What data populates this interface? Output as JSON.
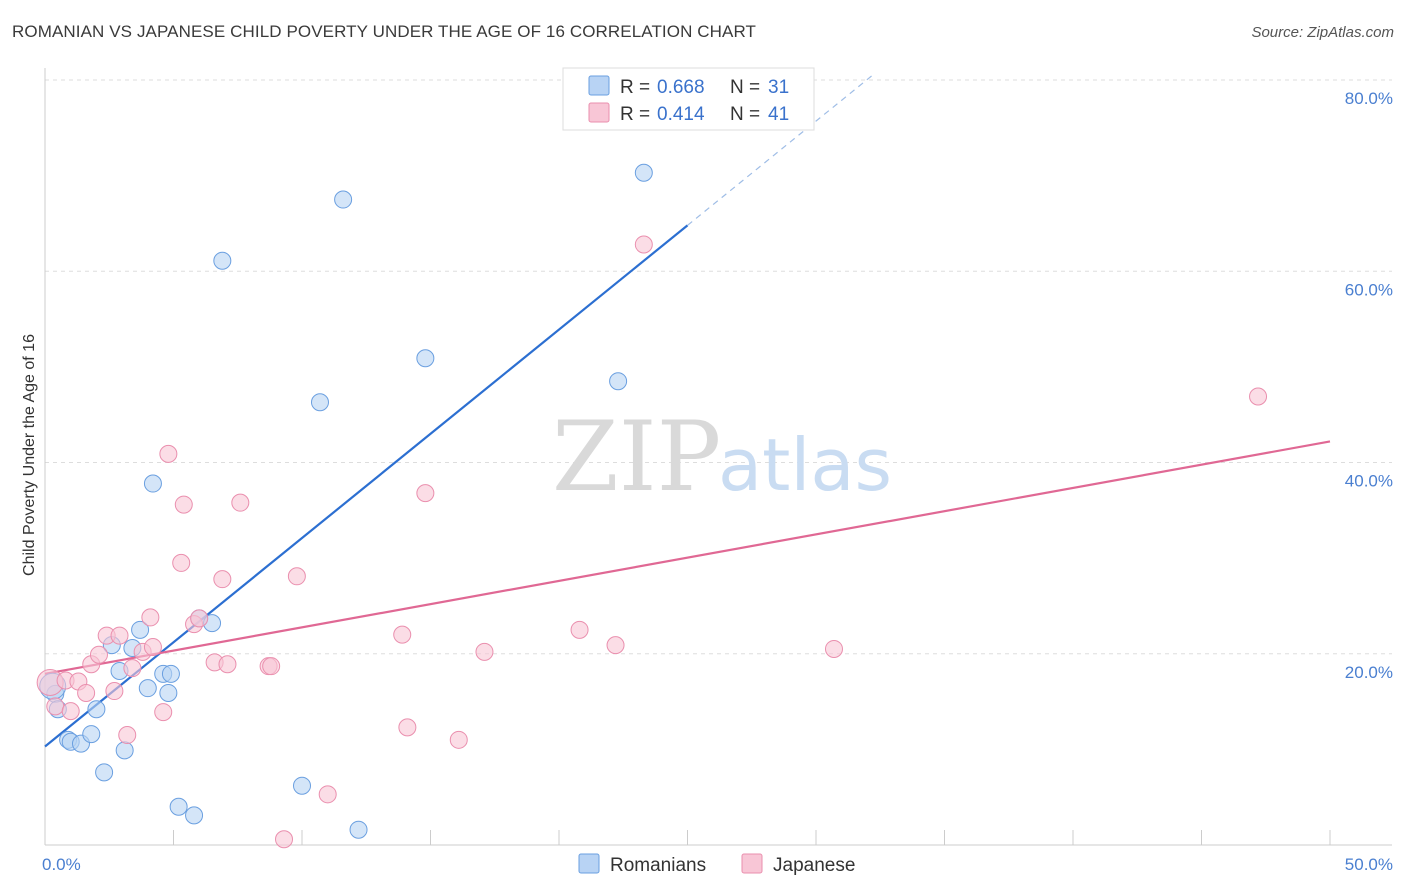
{
  "title": "ROMANIAN VS JAPANESE CHILD POVERTY UNDER THE AGE OF 16 CORRELATION CHART",
  "source": "Source: ZipAtlas.com",
  "watermark": {
    "zip": "ZIP",
    "atlas": "atlas"
  },
  "legend": {
    "romanians": {
      "r_label": "R =",
      "r_value": "0.668",
      "n_label": "N =",
      "n_value": "31"
    },
    "japanese": {
      "r_label": "R =",
      "r_value": "0.414",
      "n_label": "N =",
      "n_value": "41"
    }
  },
  "colors": {
    "romanians_fill": "#b8d3f4",
    "romanians_stroke": "#6a9fe0",
    "romanians_line": "#2c6fd1",
    "japanese_fill": "#f8c6d6",
    "japanese_stroke": "#ea8fae",
    "japanese_line": "#e06894",
    "grid": "#dddddd",
    "tick_text": "#4a7fd0"
  },
  "chart_data": {
    "type": "scatter",
    "title": "ROMANIAN VS JAPANESE CHILD POVERTY UNDER THE AGE OF 16 CORRELATION CHART",
    "xlabel": "",
    "ylabel": "Child Poverty Under the Age of 16",
    "xlim": [
      0,
      50
    ],
    "ylim": [
      0,
      80
    ],
    "x_tick_labels": [
      "0.0%",
      "50.0%"
    ],
    "y_ticks": [
      20,
      40,
      60,
      80
    ],
    "y_tick_labels": [
      "20.0%",
      "40.0%",
      "60.0%",
      "80.0%"
    ],
    "series": [
      {
        "name": "Romanians",
        "points": [
          [
            0.4,
            15.8
          ],
          [
            0.5,
            14.2
          ],
          [
            0.9,
            11.0
          ],
          [
            1.0,
            10.8
          ],
          [
            1.4,
            10.6
          ],
          [
            1.8,
            11.6
          ],
          [
            2.0,
            14.2
          ],
          [
            2.3,
            7.6
          ],
          [
            2.6,
            20.9
          ],
          [
            2.9,
            18.2
          ],
          [
            3.1,
            9.9
          ],
          [
            3.4,
            20.6
          ],
          [
            3.7,
            22.5
          ],
          [
            4.0,
            16.4
          ],
          [
            4.2,
            37.8
          ],
          [
            4.6,
            17.9
          ],
          [
            4.8,
            15.9
          ],
          [
            4.9,
            17.9
          ],
          [
            5.2,
            4.0
          ],
          [
            5.8,
            3.1
          ],
          [
            6.0,
            23.7
          ],
          [
            6.5,
            23.2
          ],
          [
            6.9,
            61.1
          ],
          [
            10.0,
            6.2
          ],
          [
            10.7,
            46.3
          ],
          [
            11.6,
            67.5
          ],
          [
            12.2,
            1.6
          ],
          [
            14.8,
            50.9
          ],
          [
            22.3,
            48.5
          ],
          [
            23.3,
            70.3
          ],
          [
            0.3,
            16.6
          ]
        ],
        "trendline": {
          "x": [
            0,
            25
          ],
          "y": [
            10.3,
            64.8
          ],
          "dashed_extension": {
            "x": [
              25,
              32.2
            ],
            "y": [
              64.8,
              80.5
            ]
          }
        }
      },
      {
        "name": "Japanese",
        "points": [
          [
            0.2,
            17.0
          ],
          [
            0.4,
            14.5
          ],
          [
            0.8,
            17.2
          ],
          [
            1.0,
            14.0
          ],
          [
            1.3,
            17.1
          ],
          [
            1.6,
            15.9
          ],
          [
            1.8,
            18.9
          ],
          [
            2.1,
            19.9
          ],
          [
            2.4,
            21.9
          ],
          [
            2.7,
            16.1
          ],
          [
            2.9,
            21.9
          ],
          [
            3.2,
            11.5
          ],
          [
            3.4,
            18.5
          ],
          [
            3.8,
            20.2
          ],
          [
            4.1,
            23.8
          ],
          [
            4.2,
            20.7
          ],
          [
            4.6,
            13.9
          ],
          [
            4.8,
            40.9
          ],
          [
            5.3,
            29.5
          ],
          [
            5.4,
            35.6
          ],
          [
            5.8,
            23.1
          ],
          [
            6.0,
            23.7
          ],
          [
            6.6,
            19.1
          ],
          [
            6.9,
            27.8
          ],
          [
            7.1,
            18.9
          ],
          [
            7.6,
            35.8
          ],
          [
            8.7,
            18.7
          ],
          [
            8.8,
            18.7
          ],
          [
            9.3,
            0.6
          ],
          [
            9.8,
            28.1
          ],
          [
            11.0,
            5.3
          ],
          [
            13.9,
            22.0
          ],
          [
            14.1,
            12.3
          ],
          [
            14.8,
            36.8
          ],
          [
            16.1,
            11.0
          ],
          [
            17.1,
            20.2
          ],
          [
            20.8,
            22.5
          ],
          [
            22.2,
            20.9
          ],
          [
            23.3,
            62.8
          ],
          [
            30.7,
            20.5
          ],
          [
            47.2,
            46.9
          ]
        ],
        "trendline": {
          "x": [
            0,
            50
          ],
          "y": [
            17.9,
            42.2
          ]
        }
      }
    ],
    "legend_entries": [
      "Romanians",
      "Japanese"
    ]
  }
}
